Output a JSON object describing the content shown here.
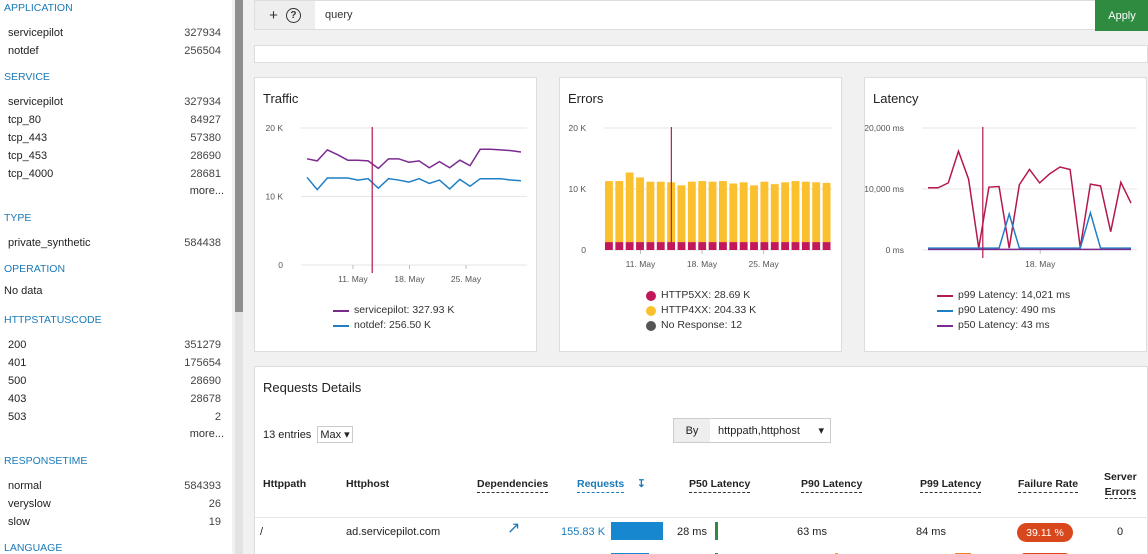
{
  "sidebar": {
    "sections": [
      {
        "title": "APPLICATION",
        "items": [
          {
            "label": "servicepilot",
            "count": "327934"
          },
          {
            "label": "notdef",
            "count": "256504"
          }
        ]
      },
      {
        "title": "SERVICE",
        "items": [
          {
            "label": "servicepilot",
            "count": "327934"
          },
          {
            "label": "tcp_80",
            "count": "84927"
          },
          {
            "label": "tcp_443",
            "count": "57380"
          },
          {
            "label": "tcp_453",
            "count": "28690"
          },
          {
            "label": "tcp_4000",
            "count": "28681"
          }
        ],
        "more": "more..."
      },
      {
        "title": "TYPE",
        "items": [
          {
            "label": "private_synthetic",
            "count": "584438"
          }
        ]
      },
      {
        "title": "OPERATION",
        "nodata": "No data"
      },
      {
        "title": "HTTPSTATUSCODE",
        "items": [
          {
            "label": "200",
            "count": "351279"
          },
          {
            "label": "401",
            "count": "175654"
          },
          {
            "label": "500",
            "count": "28690"
          },
          {
            "label": "403",
            "count": "28678"
          },
          {
            "label": "503",
            "count": "2"
          }
        ],
        "more": "more..."
      },
      {
        "title": "RESPONSETIME",
        "items": [
          {
            "label": "normal",
            "count": "584393"
          },
          {
            "label": "veryslow",
            "count": "26"
          },
          {
            "label": "slow",
            "count": "19"
          }
        ]
      },
      {
        "title": "LANGUAGE"
      }
    ]
  },
  "querybar": {
    "plus_icon": "plus-icon",
    "help_icon": "help-circle-icon",
    "help_glyph": "?",
    "query": "query",
    "apply": "Apply"
  },
  "panels": {
    "traffic": {
      "title": "Traffic",
      "legend": [
        "servicepilot: 327.93 K",
        "notdef: 256.50 K"
      ]
    },
    "errors": {
      "title": "Errors",
      "legend": [
        "HTTP5XX: 28.69 K",
        "HTTP4XX: 204.33 K",
        "No Response: 12"
      ]
    },
    "latency": {
      "title": "Latency",
      "legend": [
        "p99 Latency: 14,021 ms",
        "p90 Latency: 490 ms",
        "p50 Latency: 43 ms"
      ]
    }
  },
  "chart_data": [
    {
      "type": "line",
      "title": "Traffic",
      "x_ticks": [
        "11. May",
        "18. May",
        "25. May"
      ],
      "y_ticks": [
        "0",
        "10 K",
        "20 K"
      ],
      "ylim": [
        0,
        20000
      ],
      "series": [
        {
          "name": "servicepilot",
          "color": "#7b2a8e",
          "values": [
            15500,
            15200,
            16800,
            16100,
            15300,
            15300,
            15200,
            14100,
            15500,
            15500,
            15000,
            15200,
            14200,
            15100,
            14200,
            15300,
            14500,
            16900,
            16900,
            16800,
            16700,
            16500
          ]
        },
        {
          "name": "notdef",
          "color": "#1f7fc4",
          "values": [
            12800,
            11000,
            12700,
            12700,
            12700,
            12400,
            12600,
            11200,
            12600,
            12400,
            12100,
            12600,
            11900,
            12400,
            11100,
            12500,
            11500,
            12600,
            12600,
            12600,
            12400,
            12300
          ]
        }
      ],
      "marker_x_index": 6
    },
    {
      "type": "bar",
      "title": "Errors",
      "x_ticks": [
        "11. May",
        "18. May",
        "25. May"
      ],
      "y_ticks": [
        "0",
        "10 K",
        "20 K"
      ],
      "ylim": [
        0,
        20000
      ],
      "series": [
        {
          "name": "HTTP5XX",
          "color": "#c2185b",
          "values": [
            1300,
            1300,
            1300,
            1300,
            1300,
            1300,
            1300,
            1300,
            1300,
            1300,
            1300,
            1300,
            1300,
            1300,
            1300,
            1300,
            1300,
            1300,
            1300,
            1300,
            1300,
            1300
          ]
        },
        {
          "name": "HTTP4XX",
          "color": "#fbc02d",
          "values": [
            10000,
            10000,
            11400,
            10600,
            9900,
            9900,
            9800,
            9300,
            9900,
            10000,
            9900,
            10000,
            9600,
            9800,
            9300,
            9900,
            9500,
            9800,
            10000,
            9900,
            9800,
            9700
          ]
        },
        {
          "name": "No Response",
          "color": "#555555",
          "values": [
            0,
            0,
            0,
            0,
            0,
            0,
            0,
            0,
            0,
            0,
            0,
            0,
            0,
            0,
            0,
            0,
            0,
            0,
            0,
            0,
            0,
            0
          ]
        }
      ],
      "marker_x_index": 6
    },
    {
      "type": "line",
      "title": "Latency",
      "x_ticks": [
        "18. May"
      ],
      "y_ticks": [
        "0 ms",
        "10,000 ms",
        "20,000 ms"
      ],
      "ylim": [
        0,
        20000
      ],
      "series": [
        {
          "name": "p99 Latency",
          "color": "#b5174f",
          "values": [
            10200,
            10200,
            11000,
            16200,
            11600,
            300,
            10300,
            10400,
            300,
            10700,
            13200,
            11000,
            12500,
            13600,
            13200,
            400,
            10800,
            10500,
            3000,
            11100,
            7700
          ]
        },
        {
          "name": "p90 Latency",
          "color": "#1f7fc4",
          "values": [
            300,
            300,
            300,
            300,
            300,
            300,
            300,
            300,
            5900,
            300,
            300,
            300,
            300,
            300,
            300,
            300,
            6100,
            300,
            300,
            300,
            300
          ]
        },
        {
          "name": "p50 Latency",
          "color": "#7b2a8e",
          "values": [
            100,
            100,
            100,
            100,
            100,
            100,
            100,
            100,
            100,
            100,
            100,
            100,
            100,
            100,
            100,
            100,
            100,
            100,
            100,
            100,
            100
          ]
        }
      ],
      "marker_x_index": 5
    }
  ],
  "requests": {
    "title": "Requests Details",
    "entries_label": "13 entries",
    "entries_select": "Max",
    "by_label": "By",
    "by_value": "httppath,httphost",
    "columns": {
      "httppath": "Httppath",
      "httphost": "Httphost",
      "dependencies": "Dependencies",
      "requests": "Requests",
      "p50": "P50 Latency",
      "p90": "P90 Latency",
      "p99": "P99 Latency",
      "failure": "Failure Rate",
      "server_errors_1": "Server",
      "server_errors_2": "Errors"
    },
    "rows": [
      {
        "httppath": "/",
        "httphost": "ad.servicepilot.com",
        "requests": "155.83 K",
        "requests_share": 0.94,
        "p50": "28 ms",
        "p90": "63 ms",
        "p99": "84 ms",
        "failure": "39.11 %",
        "server_errors": "0"
      }
    ]
  }
}
